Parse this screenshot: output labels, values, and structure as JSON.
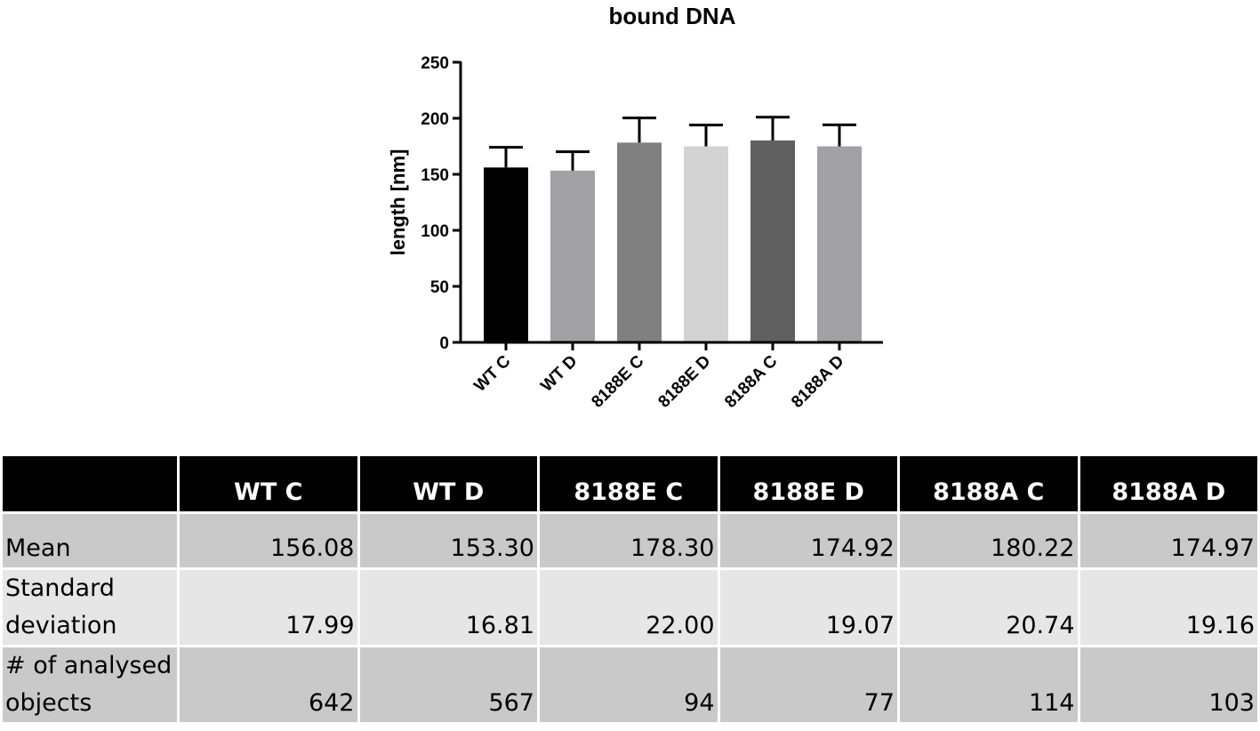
{
  "chart_data": {
    "type": "bar",
    "title": "bound DNA",
    "ylabel": "length [nm]",
    "xlabel": "",
    "categories": [
      "WT C",
      "WT D",
      "8188E C",
      "8188E D",
      "8188A C",
      "8188A D"
    ],
    "values": [
      156.08,
      153.3,
      178.3,
      174.92,
      180.22,
      174.97
    ],
    "error": [
      17.99,
      16.81,
      22.0,
      19.07,
      20.74,
      19.16
    ],
    "colors": [
      "#000000",
      "#a1a1a5",
      "#808080",
      "#d3d3d3",
      "#606060",
      "#a1a1a5"
    ],
    "ylim": [
      0,
      250
    ],
    "yticks": [
      0,
      50,
      100,
      150,
      200,
      250
    ],
    "grid": false
  },
  "table": {
    "headers": [
      "WT C",
      "WT D",
      "8188E C",
      "8188E D",
      "8188A C",
      "8188A D"
    ],
    "rows": [
      {
        "label_line1": "Mean",
        "label_line2": "",
        "values": [
          "156.08",
          "153.30",
          "178.30",
          "174.92",
          "180.22",
          "174.97"
        ]
      },
      {
        "label_line1": "Standard",
        "label_line2": "deviation",
        "values": [
          "17.99",
          "16.81",
          "22.00",
          "19.07",
          "20.74",
          "19.16"
        ]
      },
      {
        "label_line1": "# of analysed",
        "label_line2": "objects",
        "values": [
          "642",
          "567",
          "94",
          "77",
          "114",
          "103"
        ]
      }
    ]
  }
}
